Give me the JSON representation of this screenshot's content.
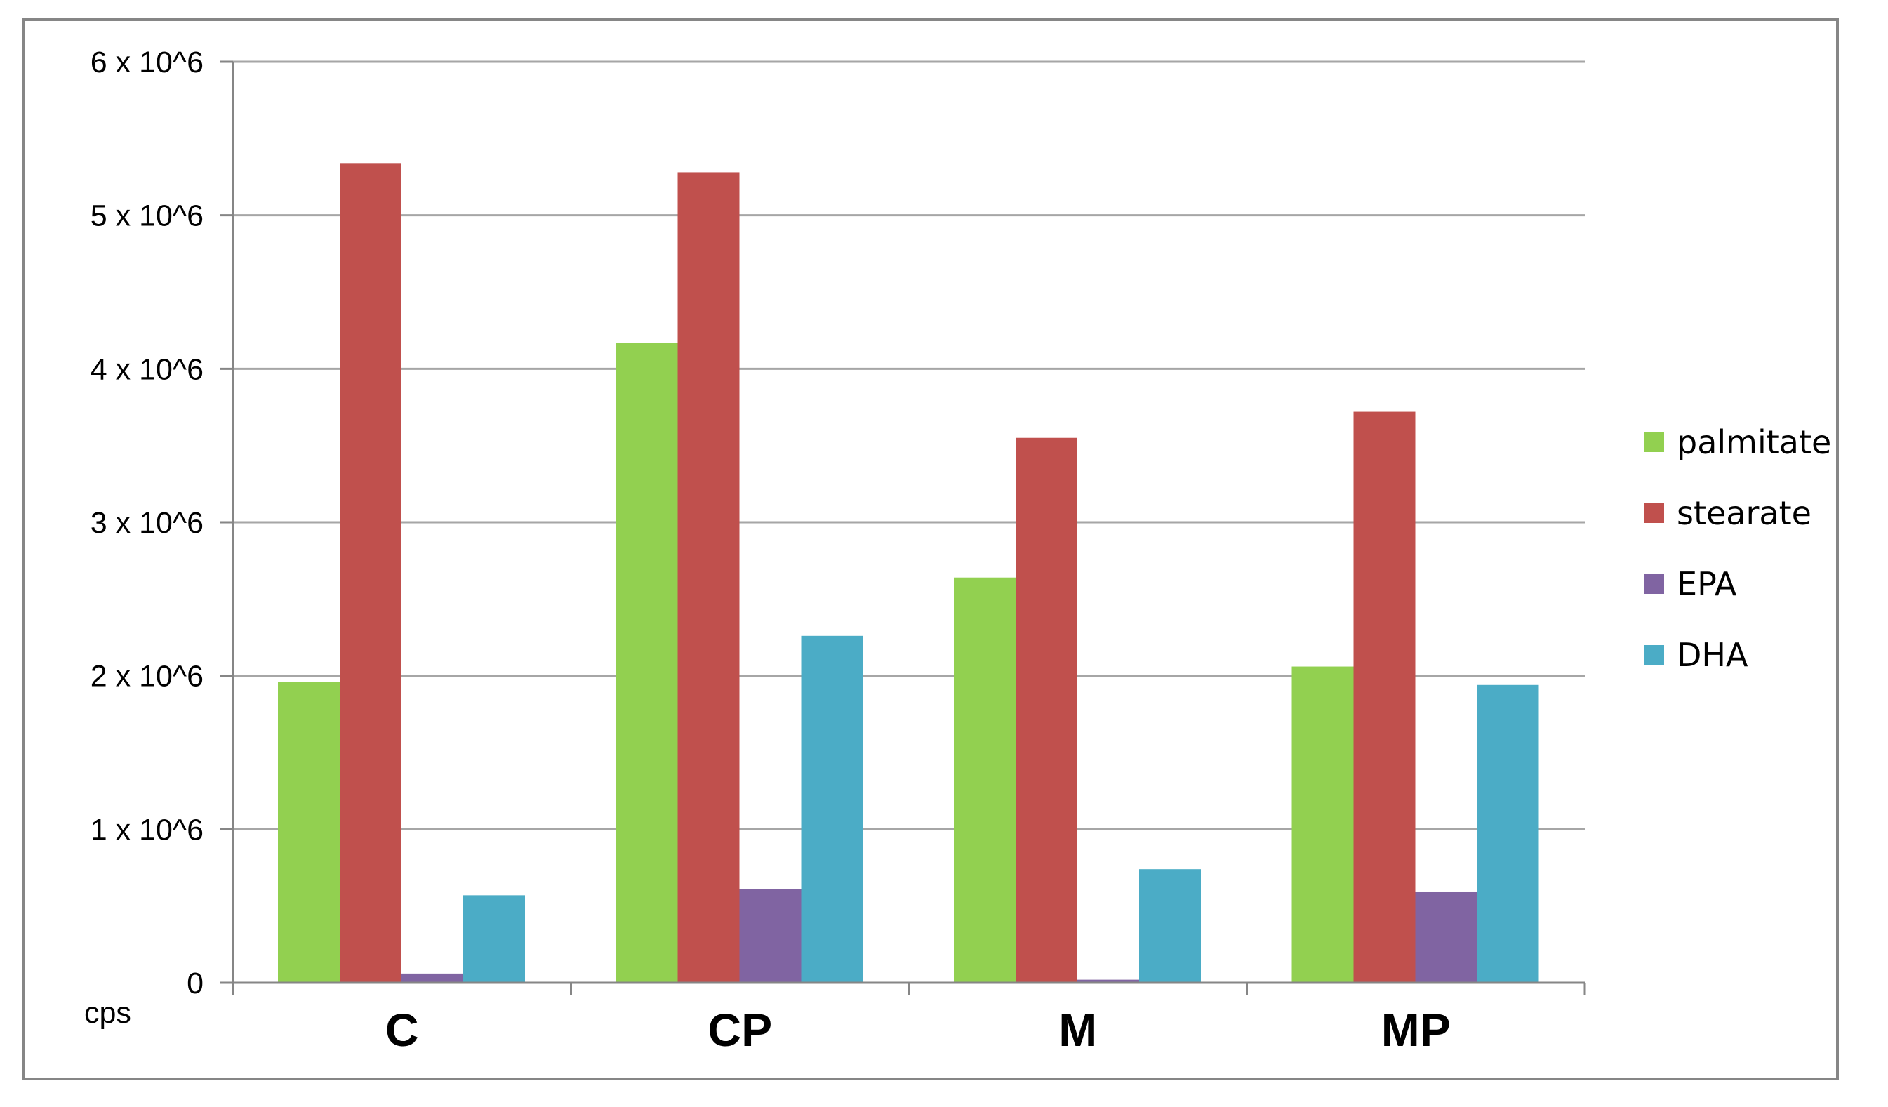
{
  "chart_data": {
    "type": "bar",
    "title": "",
    "xlabel": "",
    "ylabel": "cps",
    "ylim": [
      0,
      6000000
    ],
    "grid": true,
    "legend_position": "right",
    "categories": [
      "C",
      "CP",
      "M",
      "MP"
    ],
    "yticks": [
      {
        "value": 0,
        "label": "0"
      },
      {
        "value": 1000000,
        "label": "1 x 10^6"
      },
      {
        "value": 2000000,
        "label": "2 x 10^6"
      },
      {
        "value": 3000000,
        "label": "3 x 10^6"
      },
      {
        "value": 4000000,
        "label": "4 x 10^6"
      },
      {
        "value": 5000000,
        "label": "5 x 10^6"
      },
      {
        "value": 6000000,
        "label": "6 x 10^6"
      }
    ],
    "series": [
      {
        "name": "palmitate",
        "color": "#92D050",
        "values": [
          1960000,
          4170000,
          2640000,
          2060000
        ]
      },
      {
        "name": "stearate",
        "color": "#C0504D",
        "values": [
          5340000,
          5280000,
          3550000,
          3720000
        ]
      },
      {
        "name": "EPA",
        "color": "#8064A2",
        "values": [
          60000,
          610000,
          20000,
          590000
        ]
      },
      {
        "name": "DHA",
        "color": "#4BACC6",
        "values": [
          570000,
          2260000,
          740000,
          1940000
        ]
      }
    ]
  }
}
